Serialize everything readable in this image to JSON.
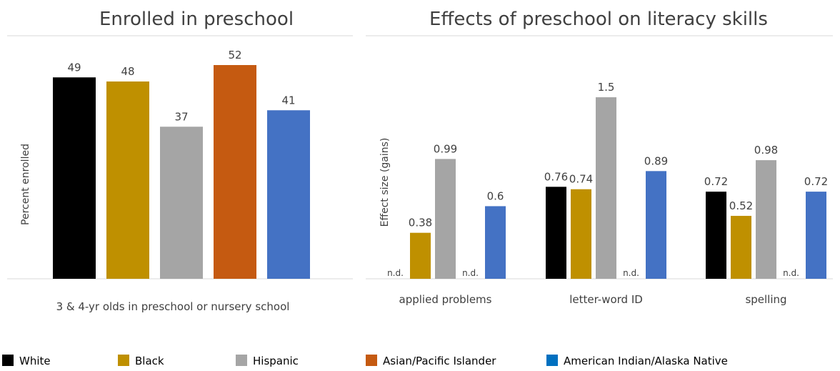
{
  "colors": {
    "White": "#000000",
    "Black": "#bf9000",
    "Hispanic": "#a5a5a5",
    "Asian/Pacific Islander": "#c55a11",
    "American Indian/Alaska Native": "#4472c4",
    "legend_american_indian": "#0070c0"
  },
  "legend": [
    "White",
    "Black",
    "Hispanic",
    "Asian/Pacific Islander",
    "American Indian/Alaska Native"
  ],
  "chart_data": [
    {
      "type": "bar",
      "title": "Enrolled in preschool",
      "ylabel": "Percent enrolled",
      "xlabel": "3 & 4-yr olds in preschool or nursery school",
      "ylim": [
        0,
        60
      ],
      "grid": false,
      "series": [
        {
          "name": "White",
          "values": [
            49
          ],
          "labels": [
            "49"
          ]
        },
        {
          "name": "Black",
          "values": [
            48
          ],
          "labels": [
            "48"
          ]
        },
        {
          "name": "Hispanic",
          "values": [
            37
          ],
          "labels": [
            "37"
          ]
        },
        {
          "name": "Asian/Pacific Islander",
          "values": [
            52
          ],
          "labels": [
            "52"
          ]
        },
        {
          "name": "American Indian/Alaska Native",
          "values": [
            41
          ],
          "labels": [
            "41"
          ]
        }
      ]
    },
    {
      "type": "bar",
      "title": "Effects of preschool on literacy skills",
      "ylabel": "Effect size (gains)",
      "ylim": [
        0,
        2
      ],
      "grid": false,
      "categories": [
        "applied problems",
        "letter-word ID",
        "spelling"
      ],
      "series": [
        {
          "name": "White",
          "values": [
            null,
            0.76,
            0.72
          ],
          "labels": [
            "n.d.",
            "0.76",
            "0.72"
          ]
        },
        {
          "name": "Black",
          "values": [
            0.38,
            0.74,
            0.52
          ],
          "labels": [
            "0.38",
            "0.74",
            "0.52"
          ]
        },
        {
          "name": "Hispanic",
          "values": [
            0.99,
            1.5,
            0.98
          ],
          "labels": [
            "0.99",
            "1.5",
            "0.98"
          ]
        },
        {
          "name": "Asian/Pacific Islander",
          "values": [
            null,
            null,
            null
          ],
          "labels": [
            "n.d.",
            "n.d.",
            "n.d."
          ]
        },
        {
          "name": "American Indian/Alaska Native",
          "values": [
            0.6,
            0.89,
            0.72
          ],
          "labels": [
            "0.6",
            "0.89",
            "0.72"
          ]
        }
      ]
    }
  ]
}
